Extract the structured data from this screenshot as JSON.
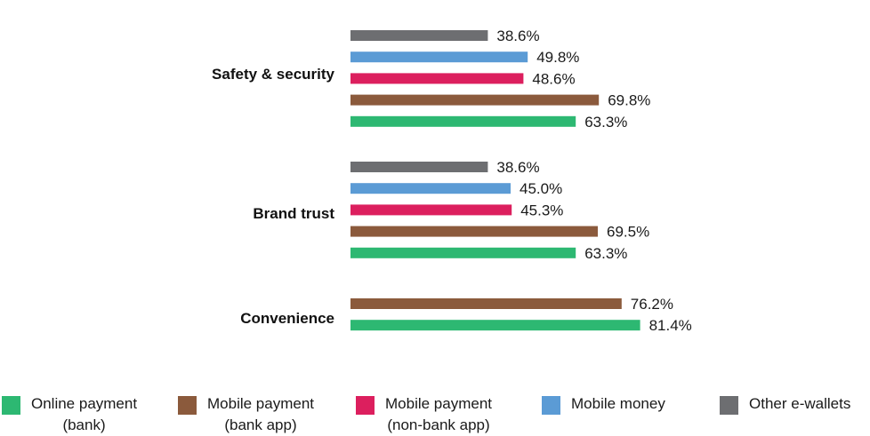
{
  "chart_data": {
    "type": "bar",
    "orientation": "horizontal",
    "categories": [
      "Safety & security",
      "Brand trust",
      "Convenience"
    ],
    "series": [
      {
        "name": "Other e-wallets",
        "color": "#6d6e71",
        "values": [
          38.6,
          38.6,
          null
        ],
        "labels": [
          "38.6%",
          "38.6%",
          ""
        ]
      },
      {
        "name": "Mobile money",
        "color": "#5b9bd5",
        "values": [
          49.8,
          45.0,
          null
        ],
        "labels": [
          "49.8%",
          "45.0%",
          ""
        ]
      },
      {
        "name": "Mobile payment (non-bank app)",
        "color": "#dc1f5e",
        "values": [
          48.6,
          45.3,
          null
        ],
        "labels": [
          "48.6%",
          "45.3%",
          ""
        ]
      },
      {
        "name": "Mobile payment (bank app)",
        "color": "#8b5a3c",
        "values": [
          69.8,
          69.5,
          76.2
        ],
        "labels": [
          "69.8%",
          "69.5%",
          "76.2%"
        ]
      },
      {
        "name": "Online payment (bank)",
        "color": "#2db872",
        "values": [
          63.3,
          63.3,
          81.4
        ],
        "labels": [
          "63.3%",
          "63.3%",
          "81.4%"
        ]
      }
    ],
    "xlim": [
      0,
      100
    ],
    "grid": false,
    "legend_position": "bottom"
  },
  "legend": [
    {
      "text": "Online payment\n(bank)",
      "color": "#2db872"
    },
    {
      "text": "Mobile payment\n(bank app)",
      "color": "#8b5a3c"
    },
    {
      "text": "Mobile payment\n(non-bank app)",
      "color": "#dc1f5e"
    },
    {
      "text": "Mobile money",
      "color": "#5b9bd5"
    },
    {
      "text": "Other e-wallets",
      "color": "#6d6e71"
    }
  ]
}
